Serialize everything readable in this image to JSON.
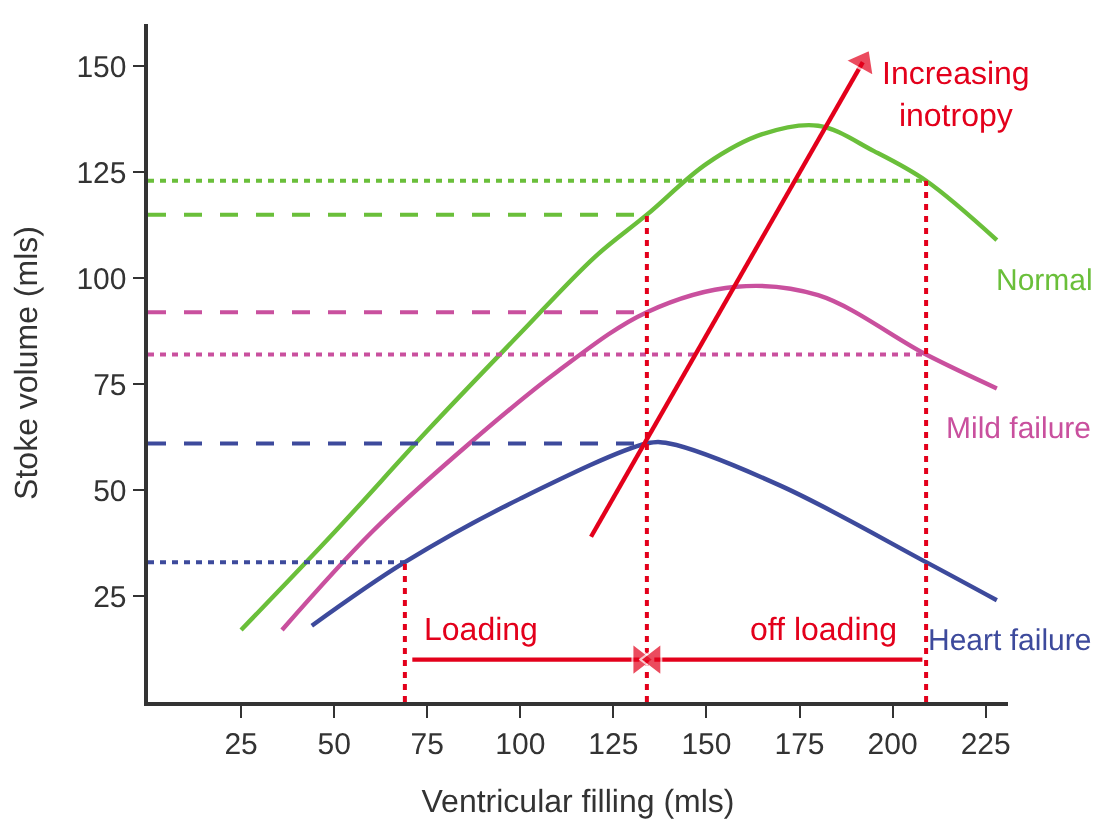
{
  "chart_data": {
    "type": "line",
    "xlabel": "Ventricular filling (mls)",
    "ylabel": "Stoke volume (mls)",
    "xlim": [
      0,
      231
    ],
    "ylim": [
      0,
      160
    ],
    "xticks": [
      25,
      50,
      75,
      100,
      125,
      150,
      175,
      200,
      225
    ],
    "yticks": [
      25,
      50,
      75,
      100,
      125,
      150
    ],
    "legend": false,
    "series": [
      {
        "name": "Normal",
        "color": "#6abf3a",
        "x": [
          25,
          50,
          75,
          100,
          120,
          134,
          150,
          165,
          180,
          195,
          209,
          228
        ],
        "values": [
          17,
          40,
          64,
          87,
          105,
          115,
          127,
          134,
          136,
          130,
          123,
          109
        ]
      },
      {
        "name": "Mild failure",
        "color": "#c9509e",
        "x": [
          36,
          60,
          85,
          110,
          134,
          158,
          180,
          209,
          228
        ],
        "values": [
          17,
          40,
          60,
          78,
          92,
          98,
          96,
          82,
          74
        ]
      },
      {
        "name": "Heart failure",
        "color": "#3d4a9c",
        "x": [
          44,
          69,
          100,
          134,
          140,
          170,
          209,
          228
        ],
        "values": [
          18,
          33,
          48,
          61,
          61,
          51,
          33,
          24
        ]
      },
      {
        "color": "#6abf3a",
        "line_style": "dashed",
        "x": [
          0,
          134
        ],
        "values": [
          115,
          115
        ]
      },
      {
        "color": "#c9509e",
        "line_style": "dashed",
        "x": [
          0,
          134
        ],
        "values": [
          92,
          92
        ]
      },
      {
        "color": "#3d4a9c",
        "line_style": "dashed",
        "x": [
          0,
          134
        ],
        "values": [
          61,
          61
        ]
      },
      {
        "color": "#6abf3a",
        "line_style": "dotted",
        "x": [
          0,
          209
        ],
        "values": [
          123,
          123
        ]
      },
      {
        "color": "#c9509e",
        "line_style": "dotted",
        "x": [
          0,
          209
        ],
        "values": [
          82,
          82
        ]
      },
      {
        "color": "#3d4a9c",
        "line_style": "dotted",
        "x": [
          0,
          69
        ],
        "values": [
          33,
          33
        ]
      },
      {
        "color": "#e3001b",
        "line_style": "dotted",
        "x": [
          69,
          69
        ],
        "values": [
          0,
          33
        ]
      },
      {
        "color": "#e3001b",
        "line_style": "dotted",
        "x": [
          134,
          134
        ],
        "values": [
          0,
          115
        ]
      },
      {
        "color": "#e3001b",
        "line_style": "dotted",
        "x": [
          209,
          209
        ],
        "values": [
          0,
          123
        ]
      },
      {
        "name": "Increasing\ninotropy",
        "color": "#e3001b",
        "marker": "triangle",
        "x": [
          119,
          192
        ],
        "values": [
          39,
          151
        ]
      },
      {
        "name": "Loading",
        "color": "#e3001b",
        "marker": "triangle",
        "x": [
          71,
          132
        ],
        "values": [
          10,
          10
        ]
      },
      {
        "name": "off loading",
        "color": "#e3001b",
        "marker": "triangle",
        "x": [
          208,
          136
        ],
        "values": [
          10,
          10
        ]
      }
    ]
  }
}
